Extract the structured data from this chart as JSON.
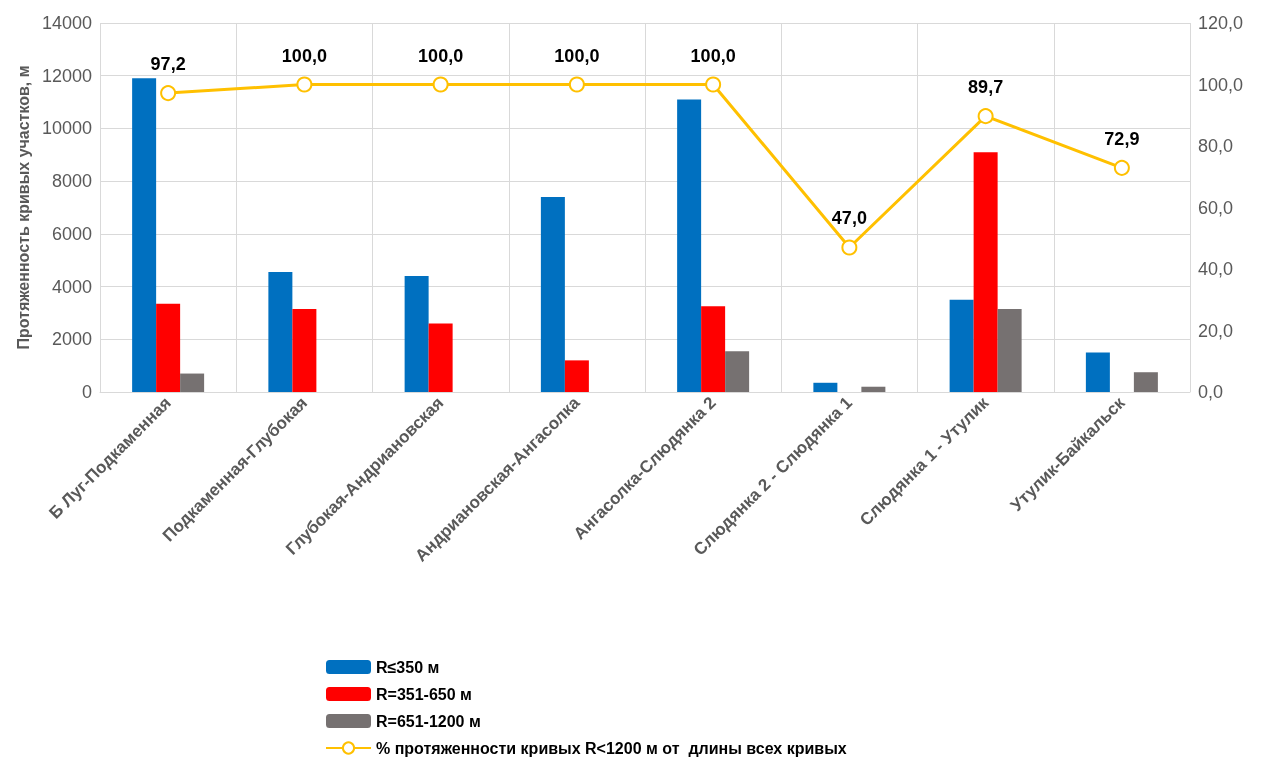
{
  "chart_data": {
    "type": "bar",
    "ylabel": "Протяженность кривых участков, м",
    "categories": [
      "Б Луг-Подкаменная",
      "Подкаменная-Глубокая",
      "Глубокая-Андриановская",
      "Андриановская-Ангасолка",
      "Ангасолка-Слюдянка 2",
      "Слюдянка 2 - Слюдянка 1",
      "Слюдянка 1 - Утулик",
      "Утулик-Байкальск"
    ],
    "series": [
      {
        "name": "R≤350 м",
        "color": "#0070c0",
        "values": [
          11900,
          4550,
          4400,
          7400,
          11100,
          350,
          3500,
          1500
        ]
      },
      {
        "name": "R=351-650 м",
        "color": "#ff0000",
        "values": [
          3350,
          3150,
          2600,
          1200,
          3250,
          null,
          9100,
          null
        ]
      },
      {
        "name": "R=651-1200 м",
        "color": "#767171",
        "values": [
          700,
          null,
          null,
          null,
          1550,
          200,
          3150,
          750
        ]
      },
      {
        "name": "% протяженности кривых R<1200 м от  длины всех кривых",
        "type": "line",
        "axis": "y2",
        "color": "#ffc000",
        "marker": "circle",
        "values": [
          97.2,
          100.0,
          100.0,
          100.0,
          100.0,
          47.0,
          89.7,
          72.9
        ],
        "value_labels": [
          "97,2",
          "100,0",
          "100,0",
          "100,0",
          "100,0",
          "47,0",
          "89,7",
          "72,9"
        ]
      }
    ],
    "ylim": [
      0,
      14000
    ],
    "yticks": [
      0,
      2000,
      4000,
      6000,
      8000,
      10000,
      12000,
      14000
    ],
    "y2lim": [
      0,
      120
    ],
    "y2ticks": [
      {
        "value": 0,
        "label": "0,0"
      },
      {
        "value": 20,
        "label": "20,0"
      },
      {
        "value": 40,
        "label": "40,0"
      },
      {
        "value": 60,
        "label": "60,0"
      },
      {
        "value": 80,
        "label": "80,0"
      },
      {
        "value": 100,
        "label": "100,0"
      },
      {
        "value": 120,
        "label": "120,0"
      }
    ],
    "grid": true,
    "legend": "bottom"
  }
}
